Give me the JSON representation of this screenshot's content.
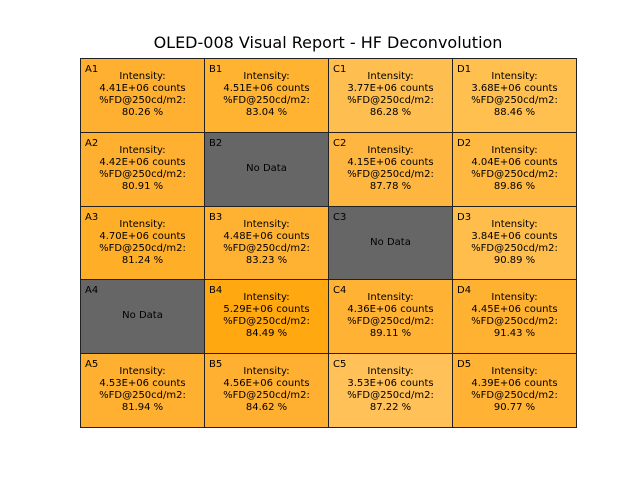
{
  "chart_data": {
    "type": "heatmap",
    "title": "OLED-008 Visual Report - HF Deconvolution",
    "columns": [
      "A",
      "B",
      "C",
      "D"
    ],
    "rows": [
      "1",
      "2",
      "3",
      "4",
      "5"
    ],
    "intensity_label": "Intensity:",
    "fd_label": "%FD@250cd/m2:",
    "no_data_label": "No Data",
    "cells": [
      {
        "id": "A1",
        "intensity": "4.41E+06 counts",
        "fd": "80.26 %",
        "color": "#ffb030"
      },
      {
        "id": "B1",
        "intensity": "4.51E+06 counts",
        "fd": "83.04 %",
        "color": "#ffb330"
      },
      {
        "id": "C1",
        "intensity": "3.77E+06 counts",
        "fd": "86.28 %",
        "color": "#ffbf50"
      },
      {
        "id": "D1",
        "intensity": "3.68E+06 counts",
        "fd": "88.46 %",
        "color": "#ffc050"
      },
      {
        "id": "A2",
        "intensity": "4.42E+06 counts",
        "fd": "80.91 %",
        "color": "#ffb030"
      },
      {
        "id": "B2",
        "intensity": null,
        "fd": null,
        "color": "#666666"
      },
      {
        "id": "C2",
        "intensity": "4.15E+06 counts",
        "fd": "87.78 %",
        "color": "#ffb640"
      },
      {
        "id": "D2",
        "intensity": "4.04E+06 counts",
        "fd": "89.86 %",
        "color": "#ffb840"
      },
      {
        "id": "A3",
        "intensity": "4.70E+06 counts",
        "fd": "81.24 %",
        "color": "#ffae28"
      },
      {
        "id": "B3",
        "intensity": "4.48E+06 counts",
        "fd": "83.23 %",
        "color": "#ffb232"
      },
      {
        "id": "C3",
        "intensity": null,
        "fd": null,
        "color": "#666666"
      },
      {
        "id": "D3",
        "intensity": "3.84E+06 counts",
        "fd": "90.89 %",
        "color": "#ffbe4c"
      },
      {
        "id": "A4",
        "intensity": null,
        "fd": null,
        "color": "#666666"
      },
      {
        "id": "B4",
        "intensity": "5.29E+06 counts",
        "fd": "84.49 %",
        "color": "#ffa810"
      },
      {
        "id": "C4",
        "intensity": "4.36E+06 counts",
        "fd": "89.11 %",
        "color": "#ffb234"
      },
      {
        "id": "D4",
        "intensity": "4.45E+06 counts",
        "fd": "91.43 %",
        "color": "#ffb232"
      },
      {
        "id": "A5",
        "intensity": "4.53E+06 counts",
        "fd": "81.94 %",
        "color": "#ffb030"
      },
      {
        "id": "B5",
        "intensity": "4.56E+06 counts",
        "fd": "84.62 %",
        "color": "#ffb030"
      },
      {
        "id": "C5",
        "intensity": "3.53E+06 counts",
        "fd": "87.22 %",
        "color": "#ffc158"
      },
      {
        "id": "D5",
        "intensity": "4.39E+06 counts",
        "fd": "90.77 %",
        "color": "#ffb234"
      }
    ]
  }
}
